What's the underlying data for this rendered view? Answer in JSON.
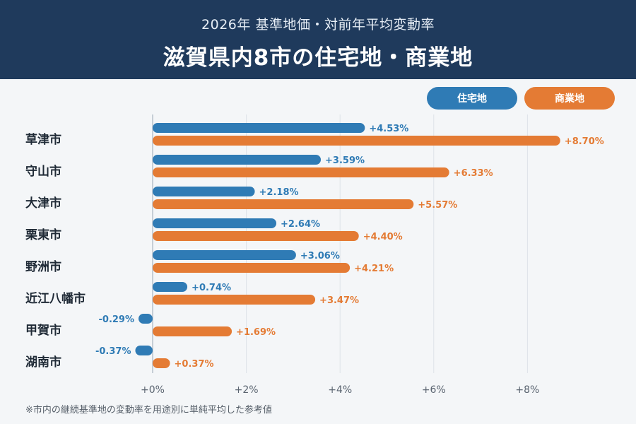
{
  "header": {
    "subtitle": "2026年 基準地価・対前年平均変動率",
    "title": "滋賀県内8市の住宅地・商業地"
  },
  "colors": {
    "residential": "#2f7bb5",
    "commercial": "#e47b34",
    "header_bg": "#1f3a5c"
  },
  "chart_data": {
    "type": "bar",
    "orientation": "horizontal",
    "title": "滋賀県内8市の住宅地・商業地",
    "subtitle": "2026年 基準地価・対前年平均変動率",
    "categories": [
      "草津市",
      "守山市",
      "大津市",
      "栗東市",
      "野洲市",
      "近江八幡市",
      "甲賀市",
      "湖南市"
    ],
    "series": [
      {
        "name": "住宅地",
        "color": "#2f7bb5",
        "values": [
          4.53,
          3.59,
          2.18,
          2.64,
          3.06,
          0.74,
          -0.29,
          -0.37
        ],
        "labels": [
          "+4.53%",
          "+3.59%",
          "+2.18%",
          "+2.64%",
          "+3.06%",
          "+0.74%",
          "-0.29%",
          "-0.37%"
        ]
      },
      {
        "name": "商業地",
        "color": "#e47b34",
        "values": [
          8.7,
          6.33,
          5.57,
          4.4,
          4.21,
          3.47,
          1.69,
          0.37
        ],
        "labels": [
          "+8.70%",
          "+6.33%",
          "+5.57%",
          "+4.40%",
          "+4.21%",
          "+3.47%",
          "+1.69%",
          "+0.37%"
        ]
      }
    ],
    "xlim": [
      -0.5,
      10
    ],
    "xticks": [
      0,
      2,
      4,
      6,
      8
    ],
    "xtick_labels": [
      "+0%",
      "+2%",
      "+4%",
      "+6%",
      "+8%"
    ],
    "grid": true,
    "legend": "top-right"
  },
  "footnote": "※市内の継続基準地の変動率を用途別に単純平均した参考値"
}
